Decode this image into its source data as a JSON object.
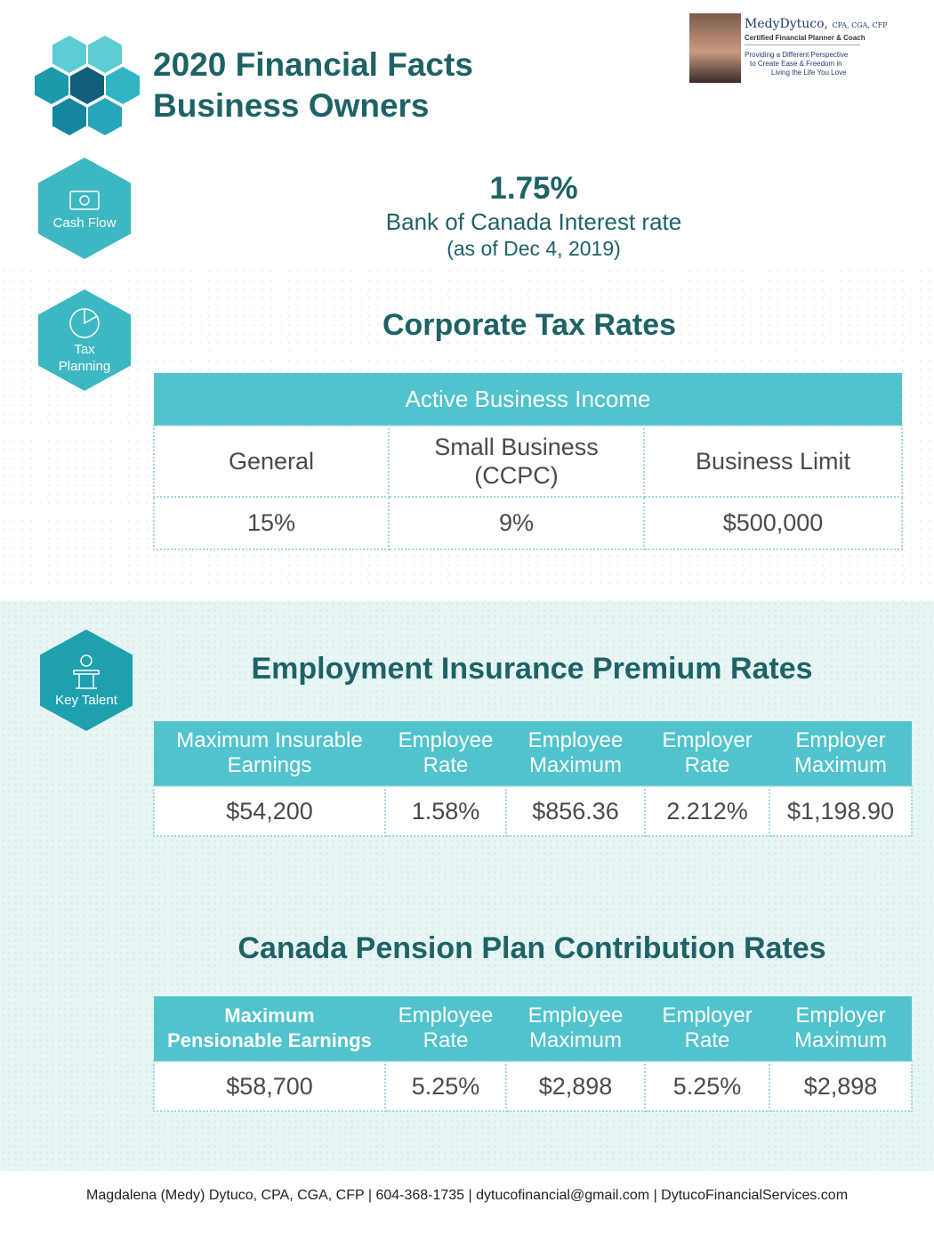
{
  "header": {
    "title_line1": "2020 Financial Facts",
    "title_line2": "Business Owners"
  },
  "badge": {
    "name_first": "Medy",
    "name_last": "Dytuco,",
    "credentials": "CPA, CGA, CFP",
    "role": "Certified Financial Planner & Coach",
    "tagline1": "Providing a Different Perspective",
    "tagline2": "to Create Ease & Freedom in",
    "tagline3": "Living the Life You Love"
  },
  "icons": {
    "cash_flow": "Cash Flow",
    "tax_planning_1": "Tax",
    "tax_planning_2": "Planning",
    "key_talent": "Key Talent"
  },
  "interest": {
    "rate": "1.75%",
    "label": "Bank of Canada Interest rate",
    "date": "(as of Dec 4, 2019)"
  },
  "corporate": {
    "title": "Corporate Tax Rates",
    "band": "Active Business Income",
    "col1": "General",
    "col2a": "Small Business",
    "col2b": "(CCPC)",
    "col3": "Business Limit",
    "v1": "15%",
    "v2": "9%",
    "v3": "$500,000"
  },
  "ei": {
    "title": "Employment Insurance Premium Rates",
    "h1a": "Maximum Insurable",
    "h1b": "Earnings",
    "h2a": "Employee",
    "h2b": "Rate",
    "h3a": "Employee",
    "h3b": "Maximum",
    "h4a": "Employer",
    "h4b": "Rate",
    "h5a": "Employer",
    "h5b": "Maximum",
    "v1": "$54,200",
    "v2": "1.58%",
    "v3": "$856.36",
    "v4": "2.212%",
    "v5": "$1,198.90"
  },
  "cpp": {
    "title": "Canada Pension Plan Contribution Rates",
    "h1a": "Maximum",
    "h1b": "Pensionable Earnings",
    "h2a": "Employee",
    "h2b": "Rate",
    "h3a": "Employee",
    "h3b": "Maximum",
    "h4a": "Employer",
    "h4b": "Rate",
    "h5a": "Employer",
    "h5b": "Maximum",
    "v1": "$58,700",
    "v2": "5.25%",
    "v3": "$2,898",
    "v4": "5.25%",
    "v5": "$2,898"
  },
  "footer": "Magdalena (Medy) Dytuco, CPA, CGA, CFP | 604-368-1735 | dytucofinancial@gmail.com | DytucoFinancialServices.com",
  "colors": {
    "brand_dark": "#1e6266",
    "brand_teal": "#50c3cc",
    "hex_teal": "#3db8c2"
  }
}
